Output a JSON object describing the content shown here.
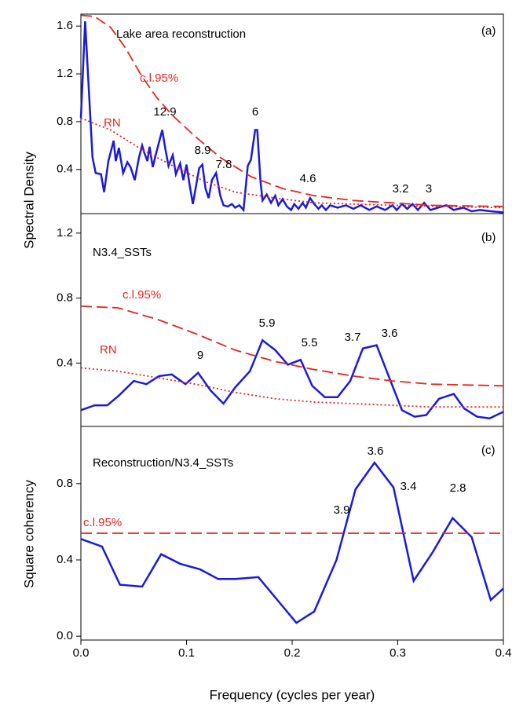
{
  "chart_data": [
    {
      "type": "line",
      "text": "Lake area reconstruction",
      "panel": "(a)",
      "ylabel": "Spectral Density",
      "xlim": [
        0,
        0.4
      ],
      "ylim": [
        0.03,
        1.7
      ],
      "yticks": [
        0.4,
        0.8,
        1.2,
        1.6
      ],
      "annotations": [
        "12.9",
        "6",
        "8.9",
        "7.8",
        "4.6",
        "3.2",
        "3"
      ],
      "series": [
        {
          "color": "#1a1adb",
          "style": "solid",
          "x": [
            0,
            0.004,
            0.011,
            0.014,
            0.019,
            0.022,
            0.026,
            0.031,
            0.033,
            0.036,
            0.04,
            0.044,
            0.047,
            0.051,
            0.055,
            0.058,
            0.06,
            0.063,
            0.065,
            0.068,
            0.072,
            0.077,
            0.08,
            0.083,
            0.087,
            0.09,
            0.094,
            0.097,
            0.1,
            0.103,
            0.106,
            0.109,
            0.112,
            0.115,
            0.118,
            0.121,
            0.124,
            0.128,
            0.132,
            0.135,
            0.139,
            0.143,
            0.146,
            0.15,
            0.154,
            0.158,
            0.161,
            0.165,
            0.167,
            0.17,
            0.172,
            0.176,
            0.18,
            0.184,
            0.187,
            0.191,
            0.195,
            0.199,
            0.202,
            0.206,
            0.21,
            0.213,
            0.217,
            0.221,
            0.225,
            0.228,
            0.232,
            0.236,
            0.243,
            0.251,
            0.258,
            0.265,
            0.273,
            0.28,
            0.288,
            0.295,
            0.299,
            0.304,
            0.309,
            0.314,
            0.319,
            0.325,
            0.331,
            0.338,
            0.346,
            0.353,
            0.362,
            0.37,
            0.378,
            0.388,
            0.4
          ],
          "values": [
            0.83,
            1.64,
            0.5,
            0.37,
            0.36,
            0.21,
            0.47,
            0.64,
            0.47,
            0.58,
            0.37,
            0.46,
            0.42,
            0.31,
            0.5,
            0.6,
            0.54,
            0.47,
            0.59,
            0.42,
            0.56,
            0.73,
            0.57,
            0.43,
            0.52,
            0.36,
            0.45,
            0.31,
            0.44,
            0.27,
            0.11,
            0.26,
            0.41,
            0.44,
            0.24,
            0.16,
            0.31,
            0.37,
            0.18,
            0.1,
            0.09,
            0.11,
            0.08,
            0.1,
            0.06,
            0.43,
            0.48,
            0.73,
            0.73,
            0.31,
            0.14,
            0.19,
            0.12,
            0.18,
            0.1,
            0.15,
            0.09,
            0.06,
            0.11,
            0.07,
            0.12,
            0.08,
            0.16,
            0.11,
            0.07,
            0.1,
            0.06,
            0.1,
            0.08,
            0.1,
            0.07,
            0.1,
            0.06,
            0.09,
            0.06,
            0.1,
            0.06,
            0.11,
            0.07,
            0.11,
            0.06,
            0.12,
            0.06,
            0.08,
            0.1,
            0.06,
            0.08,
            0.05,
            0.06,
            0.05,
            0.04
          ]
        },
        {
          "name": "c.l.95%",
          "color": "#e8251f",
          "style": "dashed",
          "x": [
            0,
            0.013,
            0.028,
            0.042,
            0.057,
            0.072,
            0.087,
            0.109,
            0.132,
            0.161,
            0.191,
            0.221,
            0.258,
            0.295,
            0.332,
            0.4
          ],
          "values": [
            1.69,
            1.68,
            1.59,
            1.42,
            1.19,
            1.0,
            0.85,
            0.67,
            0.5,
            0.34,
            0.24,
            0.18,
            0.14,
            0.12,
            0.1,
            0.09
          ]
        },
        {
          "name": "RN",
          "color": "#e8251f",
          "style": "dotted",
          "x": [
            0,
            0.028,
            0.057,
            0.087,
            0.117,
            0.146,
            0.184,
            0.221,
            0.295,
            0.4
          ],
          "values": [
            0.83,
            0.73,
            0.57,
            0.43,
            0.3,
            0.21,
            0.16,
            0.12,
            0.1,
            0.08
          ]
        }
      ]
    },
    {
      "type": "line",
      "text": "N3.4_SSTs",
      "panel": "(b)",
      "xlim": [
        0,
        0.4
      ],
      "ylim": [
        0.01,
        1.32
      ],
      "yticks": [
        0.4,
        0.8,
        1.2
      ],
      "annotations": [
        "9",
        "5.9",
        "5.5",
        "3.7",
        "3.6"
      ],
      "series": [
        {
          "color": "#1a1adb",
          "style": "solid",
          "x": [
            0,
            0.013,
            0.025,
            0.036,
            0.05,
            0.062,
            0.074,
            0.086,
            0.099,
            0.111,
            0.123,
            0.135,
            0.146,
            0.16,
            0.172,
            0.184,
            0.196,
            0.208,
            0.219,
            0.231,
            0.243,
            0.255,
            0.267,
            0.28,
            0.292,
            0.304,
            0.316,
            0.327,
            0.339,
            0.353,
            0.363,
            0.375,
            0.387,
            0.4
          ],
          "values": [
            0.11,
            0.14,
            0.14,
            0.2,
            0.29,
            0.27,
            0.32,
            0.33,
            0.27,
            0.34,
            0.23,
            0.15,
            0.25,
            0.35,
            0.54,
            0.48,
            0.39,
            0.42,
            0.26,
            0.19,
            0.19,
            0.29,
            0.49,
            0.51,
            0.31,
            0.11,
            0.07,
            0.08,
            0.18,
            0.21,
            0.12,
            0.07,
            0.06,
            0.1
          ]
        },
        {
          "name": "c.l.95%",
          "color": "#e8251f",
          "style": "dashed",
          "x": [
            0,
            0.035,
            0.072,
            0.109,
            0.146,
            0.184,
            0.221,
            0.258,
            0.295,
            0.332,
            0.4
          ],
          "values": [
            0.75,
            0.74,
            0.67,
            0.58,
            0.48,
            0.41,
            0.36,
            0.32,
            0.29,
            0.27,
            0.26
          ]
        },
        {
          "name": "RN",
          "color": "#e8251f",
          "style": "dotted",
          "x": [
            0,
            0.035,
            0.072,
            0.109,
            0.146,
            0.184,
            0.221,
            0.258,
            0.295,
            0.332,
            0.4
          ],
          "values": [
            0.37,
            0.35,
            0.31,
            0.27,
            0.22,
            0.18,
            0.16,
            0.15,
            0.14,
            0.13,
            0.13
          ]
        }
      ]
    },
    {
      "type": "line",
      "text": "Reconstruction/N3.4_SSTs",
      "panel": "(c)",
      "ylabel": "Square coherency",
      "xlabel": "Frequency (cycles per year)",
      "xlim": [
        0,
        0.4
      ],
      "xticks": [
        {
          "value": 0,
          "label": "0.0"
        },
        0.1,
        0.2,
        0.3,
        0.4
      ],
      "ylim": [
        -0.02,
        1.1
      ],
      "yticks": [
        {
          "value": 0,
          "label": "0.0"
        },
        0.4,
        0.8
      ],
      "annotations": [
        "3.6",
        "3.9",
        "3.4",
        "2.8"
      ],
      "series": [
        {
          "color": "#1a1adb",
          "style": "solid",
          "x": [
            0,
            0.02,
            0.037,
            0.058,
            0.076,
            0.094,
            0.113,
            0.13,
            0.146,
            0.168,
            0.186,
            0.204,
            0.221,
            0.242,
            0.26,
            0.278,
            0.296,
            0.315,
            0.333,
            0.352,
            0.37,
            0.388,
            0.4
          ],
          "values": [
            0.51,
            0.47,
            0.27,
            0.26,
            0.43,
            0.38,
            0.35,
            0.3,
            0.3,
            0.31,
            0.19,
            0.07,
            0.13,
            0.4,
            0.77,
            0.91,
            0.78,
            0.29,
            0.44,
            0.62,
            0.52,
            0.19,
            0.25
          ]
        },
        {
          "name": "c.l.95%",
          "color": "#e8251f",
          "style": "dashed",
          "x": [
            0,
            0.4
          ],
          "values": [
            0.54,
            0.54
          ]
        }
      ]
    }
  ]
}
